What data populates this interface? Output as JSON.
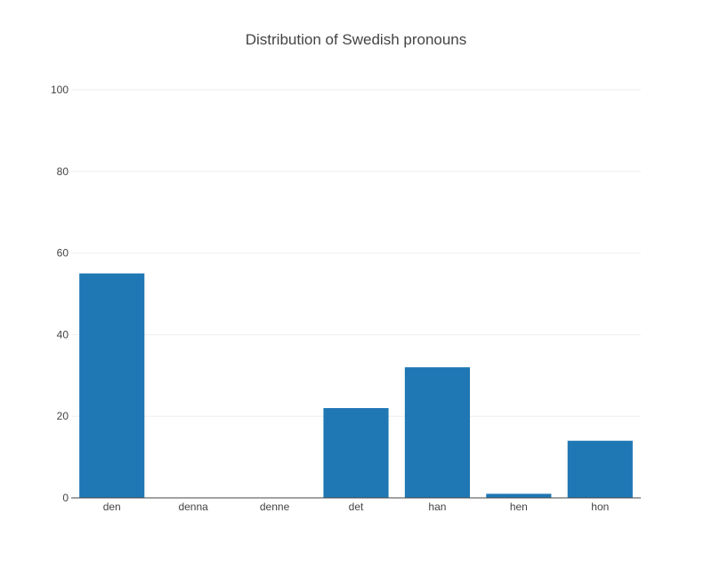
{
  "chart_data": {
    "type": "bar",
    "title": "Distribution of Swedish pronouns",
    "categories": [
      "den",
      "denna",
      "denne",
      "det",
      "han",
      "hen",
      "hon"
    ],
    "values": [
      55,
      0,
      0,
      22,
      32,
      1,
      14
    ],
    "xlabel": "",
    "ylabel": "",
    "ylim": [
      0,
      100
    ],
    "yticks": [
      0,
      20,
      40,
      60,
      80,
      100
    ],
    "grid": true,
    "legend": "none",
    "bar_color": "#1f77b4"
  }
}
